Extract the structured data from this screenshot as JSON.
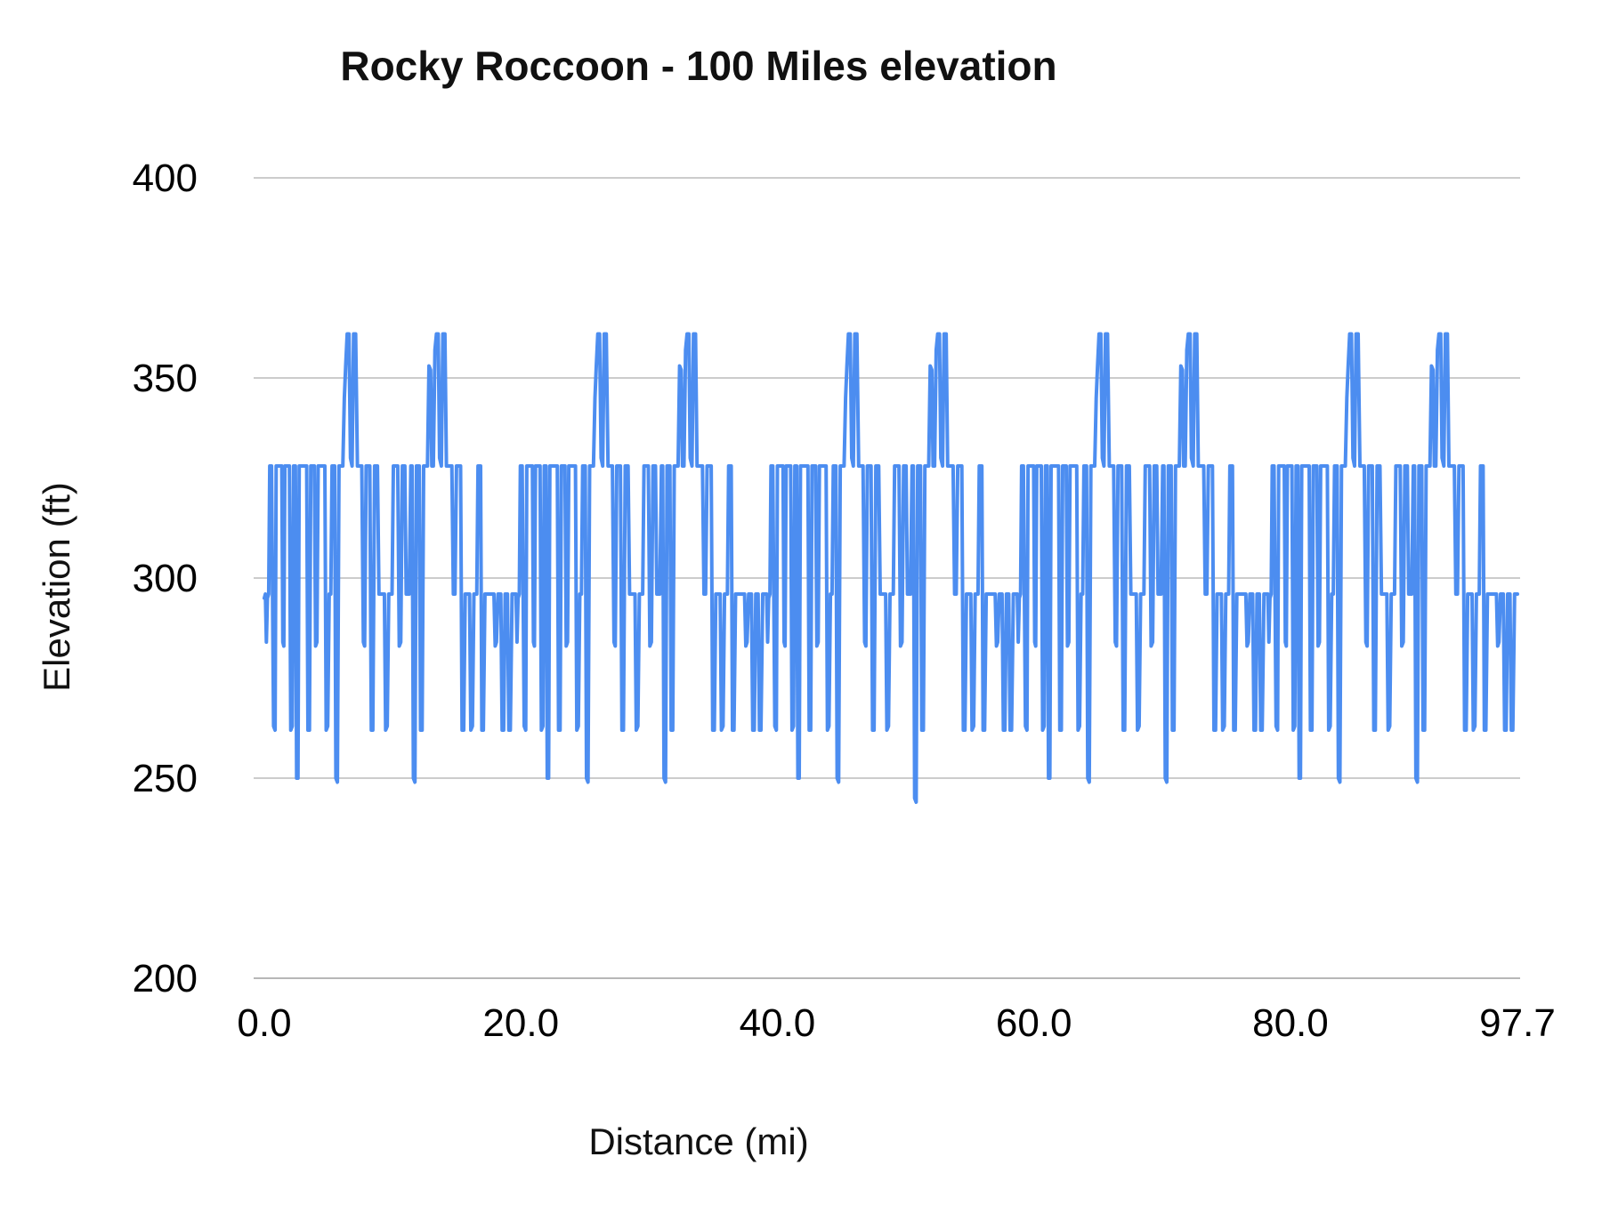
{
  "title": "Rocky Roccoon - 100 Miles elevation",
  "colors": {
    "line": "#4c8df0",
    "grid": "#cccccc",
    "baseline": "#b7b7b7",
    "text": "#000000",
    "background": "#ffffff"
  },
  "chart_data": {
    "type": "line",
    "title": "Rocky Roccoon - 100 Miles elevation",
    "xlabel": "Distance (mi)",
    "ylabel": "Elevation (ft)",
    "xlim": [
      0,
      97.7
    ],
    "ylim": [
      200,
      400
    ],
    "grid": true,
    "legend_position": "none",
    "x_ticks": [
      {
        "v": 0,
        "label": "0.0"
      },
      {
        "v": 20,
        "label": "20.0"
      },
      {
        "v": 40,
        "label": "40.0"
      },
      {
        "v": 60,
        "label": "60.0"
      },
      {
        "v": 80,
        "label": "80.0"
      },
      {
        "v": 97.7,
        "label": "97.7"
      }
    ],
    "y_ticks": [
      {
        "v": 200,
        "label": "200"
      },
      {
        "v": 250,
        "label": "250"
      },
      {
        "v": 300,
        "label": "300"
      },
      {
        "v": 350,
        "label": "350"
      },
      {
        "v": 400,
        "label": "400"
      }
    ],
    "series": [
      {
        "name": "Elevation",
        "structure": "course of 5 repeated loops; x = distance (mi), y = elevation (ft)",
        "loops": 5,
        "loop_length_mi": 19.54,
        "total_distance_mi": 97.7,
        "min_elevation_ft": 244,
        "max_elevation_ft": 361,
        "start_elevation_ft": 295,
        "end_elevation_ft": 296,
        "loop_profile": [
          [
            0.0,
            295
          ],
          [
            0.08,
            296
          ],
          [
            0.16,
            284
          ],
          [
            0.24,
            295
          ],
          [
            0.34,
            296
          ],
          [
            0.42,
            328
          ],
          [
            0.56,
            328
          ],
          [
            0.64,
            296
          ],
          [
            0.72,
            263
          ],
          [
            0.84,
            262
          ],
          [
            0.92,
            328
          ],
          [
            1.36,
            328
          ],
          [
            1.44,
            284
          ],
          [
            1.52,
            283
          ],
          [
            1.6,
            328
          ],
          [
            1.96,
            328
          ],
          [
            2.06,
            262
          ],
          [
            2.18,
            263
          ],
          [
            2.28,
            328
          ],
          [
            2.42,
            328
          ],
          [
            2.52,
            250
          ],
          [
            2.62,
            250
          ],
          [
            2.72,
            328
          ],
          [
            3.3,
            328
          ],
          [
            3.4,
            262
          ],
          [
            3.52,
            262
          ],
          [
            3.62,
            328
          ],
          [
            3.9,
            328
          ],
          [
            4.0,
            283
          ],
          [
            4.1,
            284
          ],
          [
            4.2,
            328
          ],
          [
            4.72,
            328
          ],
          [
            4.82,
            262
          ],
          [
            4.94,
            263
          ],
          [
            5.06,
            296
          ],
          [
            5.18,
            296
          ],
          [
            5.28,
            328
          ],
          [
            5.48,
            328
          ],
          [
            5.58,
            250
          ],
          [
            5.7,
            249
          ],
          [
            5.82,
            328
          ],
          [
            6.12,
            328
          ],
          [
            6.24,
            345
          ],
          [
            6.34,
            353
          ],
          [
            6.46,
            361
          ],
          [
            6.6,
            361
          ],
          [
            6.72,
            330
          ],
          [
            6.84,
            328
          ],
          [
            6.96,
            361
          ],
          [
            7.12,
            361
          ],
          [
            7.26,
            328
          ],
          [
            7.6,
            328
          ],
          [
            7.72,
            284
          ],
          [
            7.82,
            283
          ],
          [
            7.94,
            328
          ],
          [
            8.22,
            328
          ],
          [
            8.34,
            262
          ],
          [
            8.46,
            262
          ],
          [
            8.6,
            328
          ],
          [
            8.82,
            328
          ],
          [
            8.94,
            296
          ],
          [
            9.36,
            296
          ],
          [
            9.46,
            262
          ],
          [
            9.58,
            263
          ],
          [
            9.7,
            296
          ],
          [
            9.96,
            296
          ],
          [
            10.06,
            328
          ],
          [
            10.4,
            328
          ],
          [
            10.52,
            283
          ],
          [
            10.64,
            284
          ],
          [
            10.76,
            328
          ],
          [
            10.96,
            328
          ],
          [
            11.06,
            296
          ],
          [
            11.3,
            296
          ],
          [
            11.42,
            328
          ],
          [
            11.52,
            328
          ],
          [
            11.62,
            250
          ],
          [
            11.74,
            249
          ],
          [
            11.86,
            328
          ],
          [
            12.08,
            328
          ],
          [
            12.18,
            262
          ],
          [
            12.3,
            262
          ],
          [
            12.42,
            328
          ],
          [
            12.72,
            328
          ],
          [
            12.84,
            353
          ],
          [
            12.96,
            352
          ],
          [
            13.06,
            328
          ],
          [
            13.18,
            328
          ],
          [
            13.3,
            357
          ],
          [
            13.42,
            361
          ],
          [
            13.56,
            361
          ],
          [
            13.66,
            330
          ],
          [
            13.8,
            328
          ],
          [
            13.92,
            361
          ],
          [
            14.08,
            361
          ],
          [
            14.2,
            328
          ],
          [
            14.62,
            328
          ],
          [
            14.74,
            296
          ],
          [
            14.86,
            296
          ],
          [
            14.98,
            328
          ],
          [
            15.3,
            328
          ],
          [
            15.42,
            262
          ],
          [
            15.54,
            262
          ],
          [
            15.66,
            296
          ],
          [
            16.0,
            296
          ],
          [
            16.1,
            262
          ],
          [
            16.22,
            263
          ],
          [
            16.34,
            296
          ],
          [
            16.56,
            296
          ],
          [
            16.66,
            328
          ],
          [
            16.86,
            328
          ],
          [
            16.96,
            262
          ],
          [
            17.08,
            262
          ],
          [
            17.2,
            296
          ],
          [
            17.9,
            296
          ],
          [
            18.0,
            283
          ],
          [
            18.1,
            284
          ],
          [
            18.22,
            296
          ],
          [
            18.44,
            296
          ],
          [
            18.54,
            262
          ],
          [
            18.66,
            262
          ],
          [
            18.78,
            296
          ],
          [
            18.96,
            296
          ],
          [
            19.06,
            262
          ],
          [
            19.18,
            262
          ],
          [
            19.32,
            296
          ],
          [
            19.46,
            296
          ],
          [
            19.54,
            296
          ]
        ],
        "overrides": [
          {
            "loop_index": 2,
            "points": [
              [
                11.62,
                245
              ],
              [
                11.74,
                244
              ]
            ]
          }
        ]
      }
    ]
  }
}
